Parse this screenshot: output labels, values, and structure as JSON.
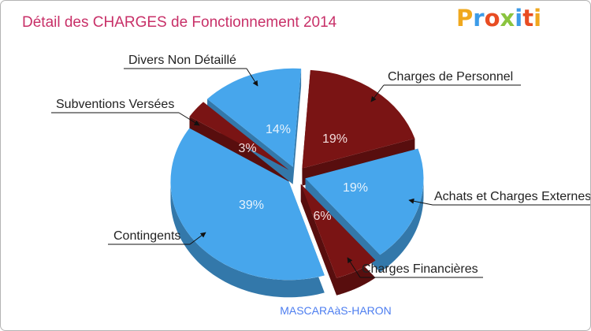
{
  "title": "Détail des CHARGES de Fonctionnement 2014",
  "brand": {
    "text": "Proxiti",
    "colors": [
      "#f0a81e",
      "#3c9be8",
      "#e84c22",
      "#8bc43f",
      "#3c9be8",
      "#e84c22",
      "#f0a81e"
    ]
  },
  "colors": {
    "red": "#7a1414",
    "blue": "#47a6ec",
    "title": "#c83068",
    "subtitle": "#4d7ef0"
  },
  "chart_data": {
    "type": "pie",
    "title": "Détail des CHARGES de Fonctionnement 2014",
    "subtitle": "MASCARAàS-HARON",
    "slices": [
      {
        "label": "Charges de Personnel",
        "value": 19,
        "pct_label": "19%",
        "color": "red"
      },
      {
        "label": "Achats et Charges Externes",
        "value": 19,
        "pct_label": "19%",
        "color": "blue"
      },
      {
        "label": "Charges Financières",
        "value": 6,
        "pct_label": "6%",
        "color": "red"
      },
      {
        "label": "Contingents",
        "value": 39,
        "pct_label": "39%",
        "color": "blue"
      },
      {
        "label": "Subventions Versées",
        "value": 3,
        "pct_label": "3%",
        "color": "red"
      },
      {
        "label": "Divers Non Détaillé",
        "value": 14,
        "pct_label": "14%",
        "color": "blue"
      }
    ]
  }
}
